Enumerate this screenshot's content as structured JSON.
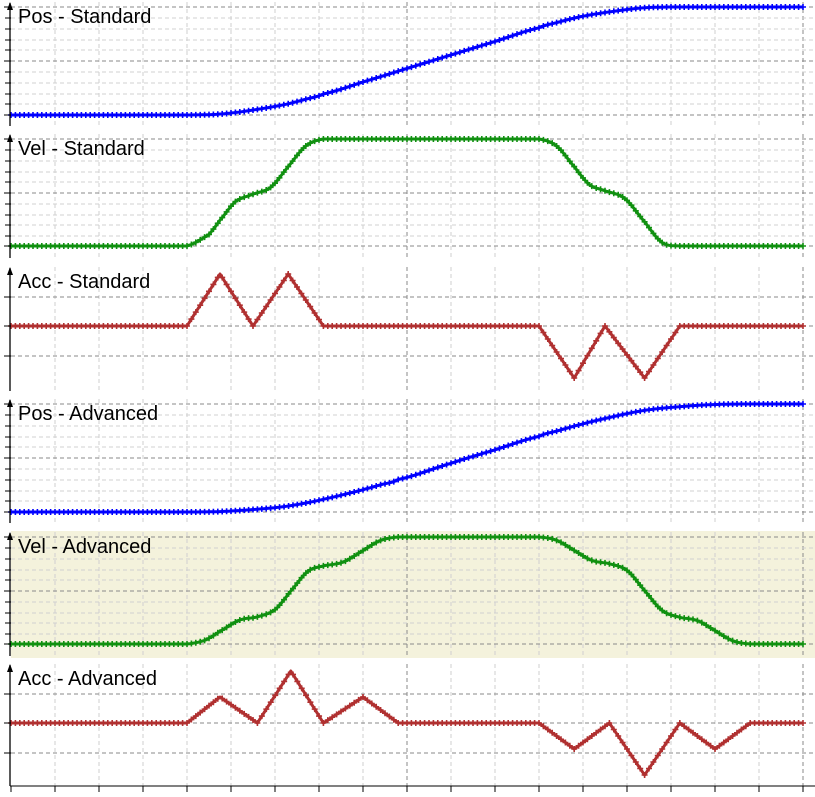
{
  "chart_data": [
    {
      "type": "line",
      "title": "Pos - Standard",
      "kind": "pos",
      "color": "#0000ff",
      "xlim": [
        0,
        18
      ],
      "ylim": [
        0,
        1
      ],
      "grid": true,
      "x": [
        0,
        4,
        4.5,
        4.75,
        5.1,
        5.5,
        5.9,
        6.3,
        6.7,
        7.1,
        8,
        9,
        10,
        11,
        12,
        12.4,
        12.8,
        13.15,
        13.5,
        13.95,
        14.4,
        14.8,
        15.2,
        18
      ],
      "y": [
        0,
        0,
        0.003,
        0.009,
        0.023,
        0.046,
        0.072,
        0.104,
        0.146,
        0.194,
        0.306,
        0.431,
        0.556,
        0.681,
        0.807,
        0.855,
        0.897,
        0.926,
        0.949,
        0.974,
        0.993,
        0.999,
        1,
        1
      ]
    },
    {
      "type": "line",
      "title": "Vel - Standard",
      "kind": "vel",
      "color": "#109010",
      "xlim": [
        0,
        18
      ],
      "ylim": [
        0,
        1
      ],
      "grid": true,
      "x": [
        0,
        4,
        4.5,
        4.75,
        5.1,
        5.5,
        5.9,
        6.3,
        6.7,
        7.1,
        12,
        12.4,
        12.8,
        13.15,
        13.5,
        13.95,
        14.4,
        14.8,
        15.2,
        18
      ],
      "y": [
        0,
        0,
        0.108,
        0.242,
        0.415,
        0.484,
        0.548,
        0.742,
        0.935,
        1,
        1,
        0.935,
        0.742,
        0.573,
        0.516,
        0.444,
        0.226,
        0.032,
        0,
        0
      ]
    },
    {
      "type": "line",
      "title": "Acc - Standard",
      "kind": "acc",
      "color": "#b03030",
      "xlim": [
        0,
        18
      ],
      "ylim": [
        -1,
        1
      ],
      "grid": true,
      "x": [
        0,
        4,
        4.75,
        5.5,
        6.3,
        7.1,
        12,
        12.8,
        13.5,
        14.4,
        15.2,
        18
      ],
      "y": [
        0,
        0,
        1,
        0,
        1,
        0,
        0,
        -1,
        0,
        -1,
        0,
        0
      ]
    },
    {
      "type": "line",
      "title": "Pos - Advanced",
      "kind": "pos",
      "color": "#0000ff",
      "xlim": [
        0,
        18
      ],
      "ylim": [
        0,
        1
      ],
      "grid": true,
      "x": [
        0,
        4,
        4.4,
        4.75,
        5.2,
        5.6,
        6,
        6.36,
        6.75,
        7.1,
        7.55,
        8,
        8.4,
        8.8,
        10,
        11,
        12,
        12.4,
        12.8,
        13.2,
        13.6,
        14,
        14.4,
        14.8,
        15.2,
        15.6,
        16,
        16.4,
        16.8,
        18
      ],
      "y": [
        0,
        0,
        0.001,
        0.004,
        0.014,
        0.026,
        0.04,
        0.059,
        0.087,
        0.118,
        0.16,
        0.206,
        0.252,
        0.301,
        0.451,
        0.576,
        0.7,
        0.749,
        0.795,
        0.837,
        0.875,
        0.911,
        0.941,
        0.961,
        0.975,
        0.987,
        0.995,
        0.999,
        1,
        1
      ]
    },
    {
      "type": "line",
      "title": "Vel - Advanced",
      "kind": "vel",
      "color": "#109010",
      "highlight": "#f4f2dc",
      "xlim": [
        0,
        18
      ],
      "ylim": [
        0,
        1
      ],
      "grid": true,
      "x": [
        0,
        4,
        4.4,
        4.75,
        5.2,
        5.6,
        6,
        6.36,
        6.75,
        7.1,
        7.55,
        8,
        8.4,
        8.8,
        12,
        12.4,
        12.8,
        13.2,
        13.6,
        14,
        14.4,
        14.8,
        15.2,
        15.6,
        16,
        16.4,
        16.8,
        18
      ],
      "y": [
        0,
        0,
        0.034,
        0.119,
        0.224,
        0.254,
        0.321,
        0.495,
        0.679,
        0.73,
        0.766,
        0.873,
        0.968,
        1,
        1,
        0.969,
        0.875,
        0.781,
        0.75,
        0.688,
        0.5,
        0.313,
        0.25,
        0.219,
        0.125,
        0.031,
        0,
        0
      ]
    },
    {
      "type": "line",
      "title": "Acc - Advanced",
      "kind": "acc",
      "color": "#b03030",
      "xlim": [
        0,
        18
      ],
      "ylim": [
        -1,
        1
      ],
      "grid": true,
      "x": [
        0,
        4,
        4.75,
        5.6,
        6.36,
        7.1,
        8,
        8.8,
        12,
        12.8,
        13.6,
        14.4,
        15.2,
        16,
        16.8,
        18
      ],
      "y": [
        0,
        0,
        0.5,
        0,
        1,
        0,
        0.5,
        0,
        0,
        -0.5,
        0,
        -1,
        0,
        -0.5,
        0,
        0
      ]
    }
  ]
}
